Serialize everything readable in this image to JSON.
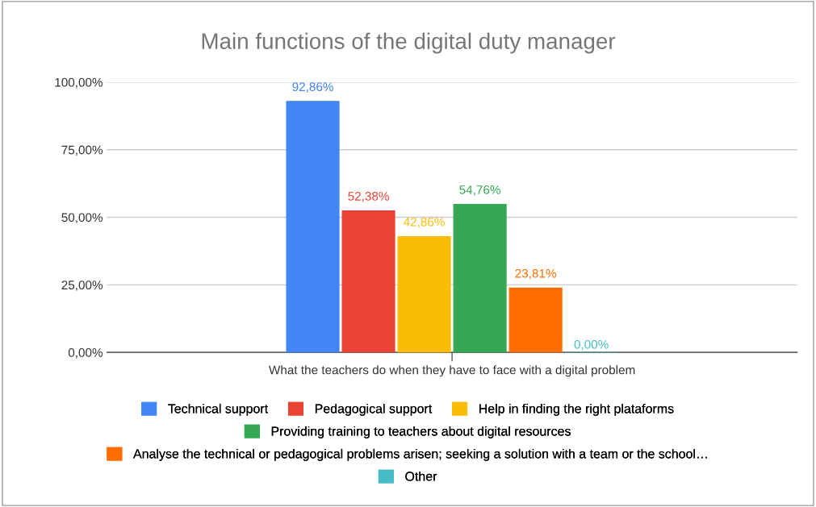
{
  "chart_data": {
    "type": "bar",
    "title": "Main functions of the digital duty manager",
    "categories": [
      "What the teachers do when they have to face with a digital problem"
    ],
    "series": [
      {
        "name": "Technical support",
        "color": "#4285f4",
        "values": [
          92.86
        ],
        "value_labels": [
          "92,86%"
        ]
      },
      {
        "name": "Pedagogical support",
        "color": "#ea4335",
        "values": [
          52.38
        ],
        "value_labels": [
          "52,38%"
        ]
      },
      {
        "name": "Help in finding the right plataforms",
        "color": "#fbbc04",
        "values": [
          42.86
        ],
        "value_labels": [
          "42,86%"
        ]
      },
      {
        "name": "Providing training to teachers about digital resources",
        "color": "#34a853",
        "values": [
          54.76
        ],
        "value_labels": [
          "54,76%"
        ]
      },
      {
        "name": "Analyse the technical or pedagogical problems arisen; seeking a solution with a team or the school…",
        "color": "#ff6d01",
        "values": [
          23.81
        ],
        "value_labels": [
          "23,81%"
        ]
      },
      {
        "name": "Other",
        "color": "#46bdc6",
        "values": [
          0
        ],
        "value_labels": [
          "0,00%"
        ]
      }
    ],
    "ylim": [
      0,
      100
    ],
    "yticks": [
      {
        "value": 0,
        "label": "0,00%"
      },
      {
        "value": 25,
        "label": "25,00%"
      },
      {
        "value": 50,
        "label": "50,00%"
      },
      {
        "value": 75,
        "label": "75,00%"
      },
      {
        "value": 100,
        "label": "100,00%"
      }
    ],
    "grid": "y",
    "legend": "bottom"
  }
}
